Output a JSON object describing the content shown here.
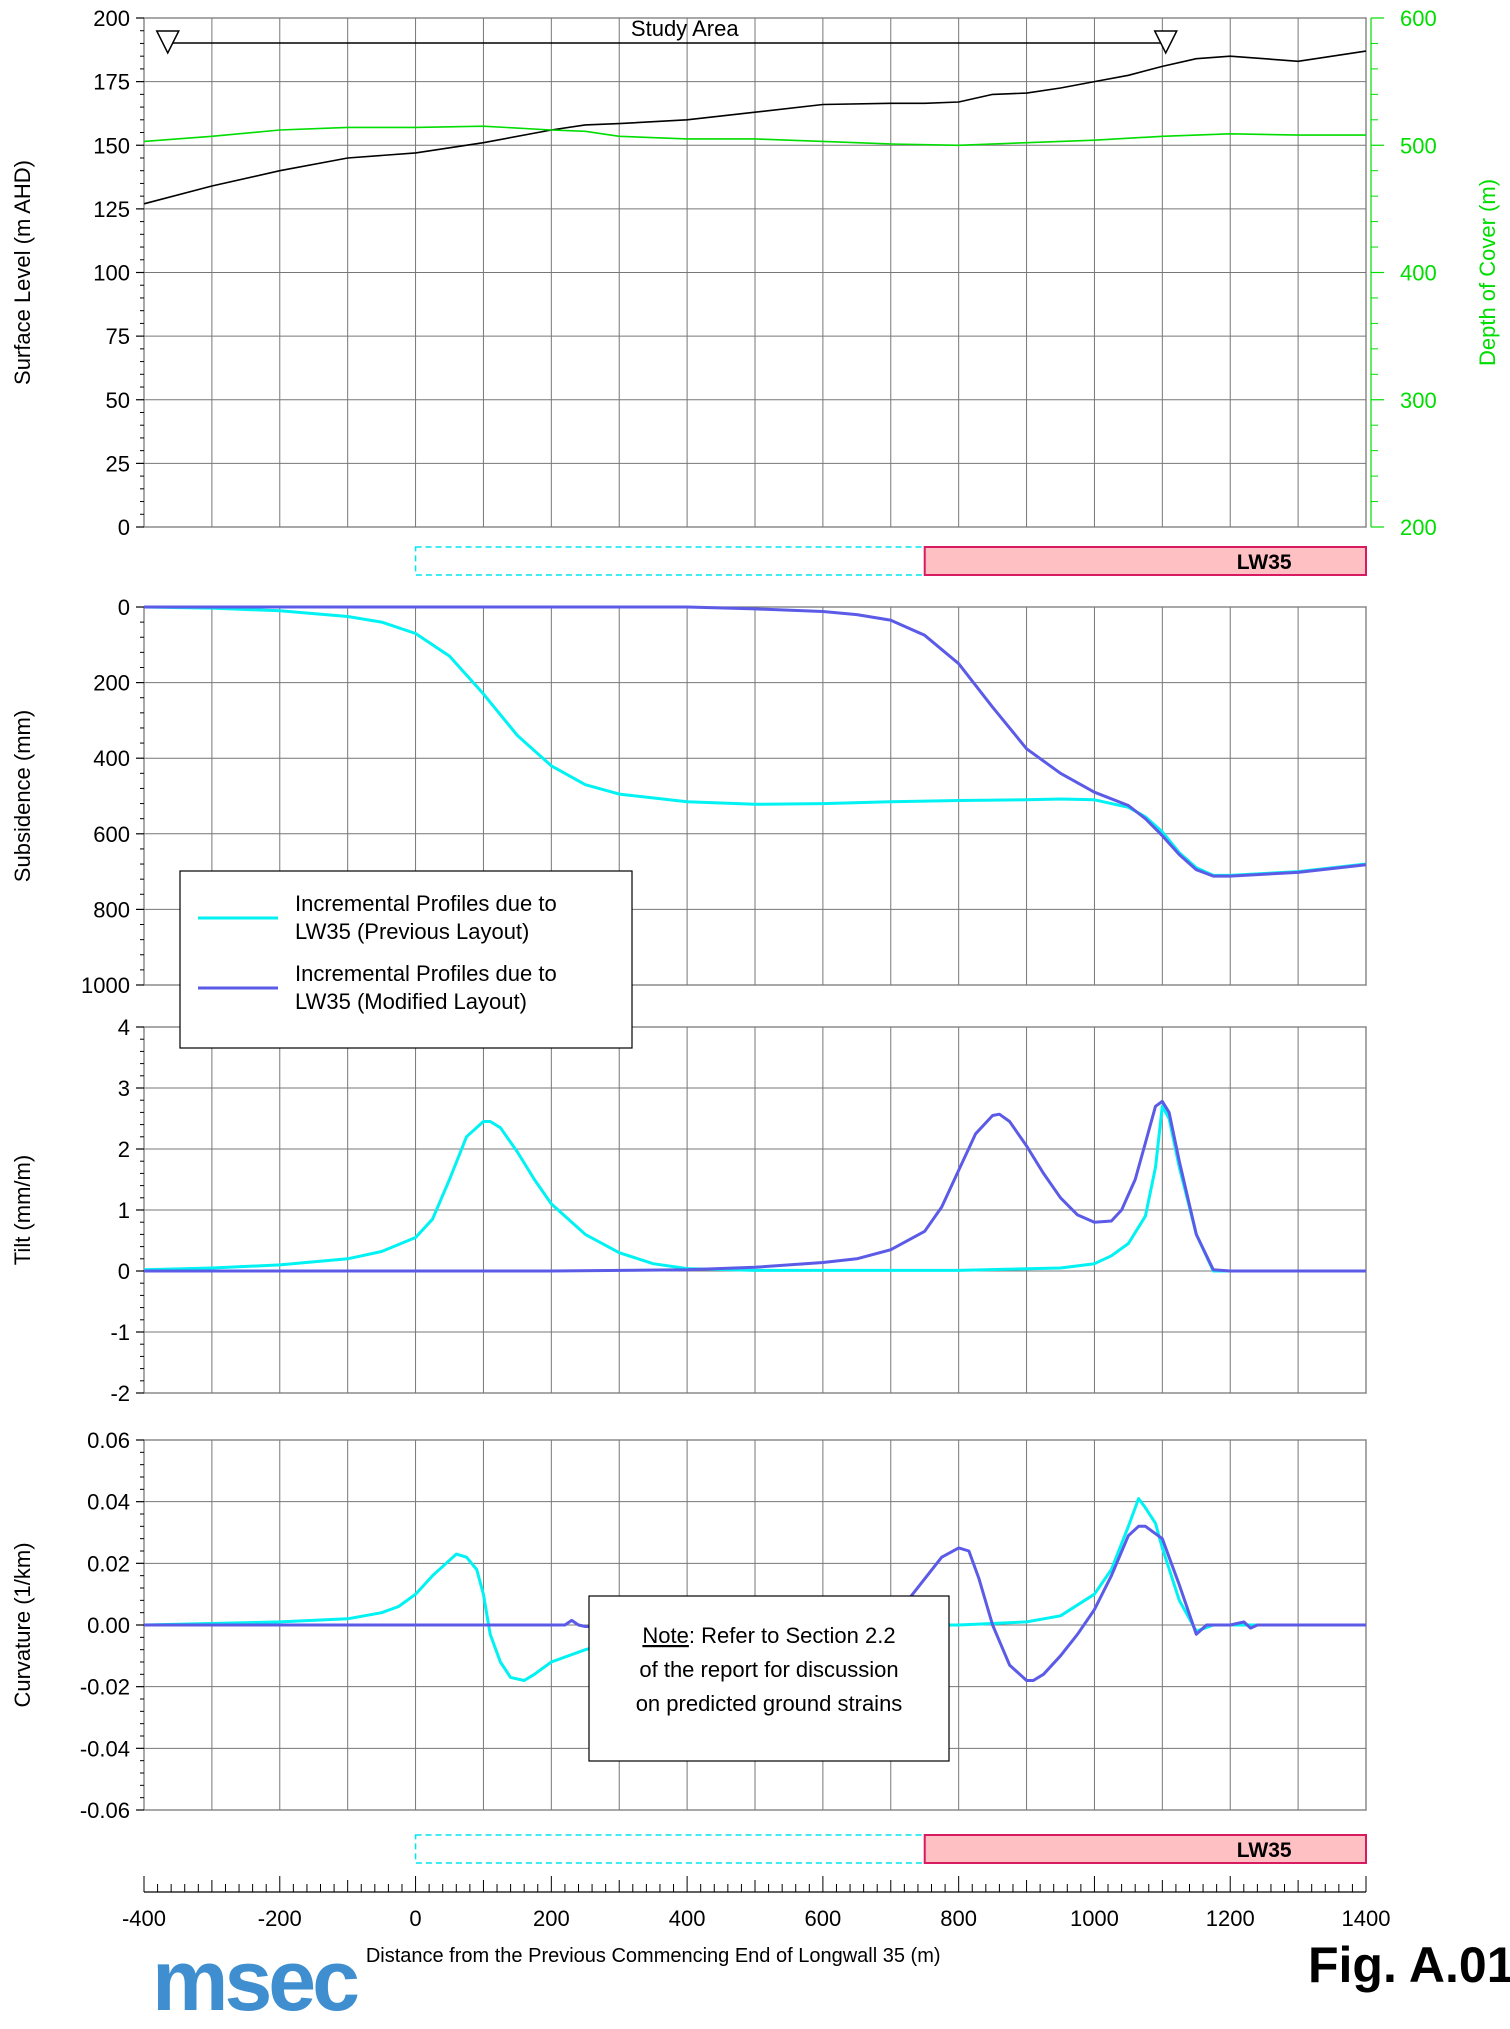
{
  "x_axis": {
    "label": "Distance from the Previous Commencing End of Longwall 35 (m)",
    "range": [
      -400,
      1400
    ],
    "ticks": [
      -400,
      -200,
      0,
      200,
      400,
      600,
      800,
      1000,
      1200,
      1400
    ],
    "tick_labels": [
      "-400",
      "-200",
      "0",
      "200",
      "400",
      "600",
      "800",
      "1000",
      "1200",
      "1400"
    ]
  },
  "longwall_bars": {
    "previous_layout_range": [
      0,
      750
    ],
    "lw35_range": [
      750,
      1400
    ],
    "lw35_label": "LW35",
    "previous_color": "#00e5ee",
    "lw35_color": "#ffc0c4",
    "lw35_border": "#d81b60"
  },
  "study_area": {
    "label": "Study Area",
    "range": [
      -365,
      1105
    ]
  },
  "legend": {
    "entries": [
      {
        "label_line1": "Incremental Profiles due to",
        "label_line2": "LW35 (Previous Layout)",
        "color": "#00f2f2"
      },
      {
        "label_line1": "Incremental Profiles due to",
        "label_line2": "LW35 (Modified Layout)",
        "color": "#5b5be8"
      }
    ]
  },
  "note": {
    "underlined": "Note",
    "line1_rest": ": Refer to Section 2.2",
    "line2": "of the report for discussion",
    "line3": "on predicted ground strains"
  },
  "logo_text": "msec",
  "figure_label": "Fig. A.01",
  "chart_data": [
    {
      "type": "line",
      "panel": "surface",
      "ylabel": "Surface Level (m AHD)",
      "ylim": [
        0,
        200
      ],
      "yticks": [
        0,
        25,
        50,
        75,
        100,
        125,
        150,
        175,
        200
      ],
      "y2label": "Depth of Cover (m)",
      "y2lim": [
        200,
        600
      ],
      "y2ticks": [
        200,
        300,
        400,
        500,
        600
      ],
      "series": [
        {
          "axis": "left",
          "color": "#000000",
          "x": [
            -400,
            -300,
            -200,
            -100,
            0,
            100,
            200,
            250,
            300,
            400,
            500,
            600,
            700,
            750,
            800,
            850,
            900,
            950,
            1000,
            1050,
            1100,
            1150,
            1200,
            1250,
            1300,
            1350,
            1400
          ],
          "y": [
            127,
            134,
            140,
            145,
            147,
            151,
            156,
            158,
            158.5,
            160,
            163,
            166,
            166.5,
            166.5,
            167,
            170,
            170.5,
            172.5,
            175,
            177.5,
            181,
            184,
            185,
            184,
            183,
            185,
            187
          ]
        },
        {
          "axis": "right",
          "color": "#00dd00",
          "x": [
            -400,
            -300,
            -200,
            -100,
            0,
            100,
            200,
            250,
            300,
            400,
            500,
            600,
            700,
            800,
            900,
            1000,
            1100,
            1200,
            1300,
            1400
          ],
          "y": [
            503,
            507,
            512,
            514,
            514,
            515,
            512,
            511,
            507,
            505,
            505,
            503,
            501,
            500,
            502,
            504,
            507,
            509,
            508,
            508
          ]
        }
      ]
    },
    {
      "type": "line",
      "panel": "subsidence",
      "ylabel": "Subsidence (mm)",
      "ylim": [
        1000,
        0
      ],
      "yticks": [
        0,
        200,
        400,
        600,
        800,
        1000
      ],
      "series": [
        {
          "color": "#00f2f2",
          "x": [
            -400,
            -300,
            -200,
            -100,
            -50,
            0,
            50,
            100,
            150,
            200,
            250,
            300,
            400,
            500,
            600,
            700,
            800,
            900,
            950,
            1000,
            1050,
            1075,
            1100,
            1125,
            1150,
            1175,
            1200,
            1300,
            1400
          ],
          "y": [
            0,
            3,
            10,
            25,
            40,
            70,
            130,
            230,
            340,
            420,
            470,
            495,
            515,
            522,
            520,
            515,
            512,
            510,
            508,
            510,
            530,
            555,
            595,
            650,
            690,
            710,
            710,
            700,
            680
          ]
        },
        {
          "color": "#5b5be8",
          "x": [
            -400,
            -200,
            0,
            200,
            400,
            500,
            600,
            650,
            700,
            750,
            800,
            850,
            900,
            950,
            1000,
            1050,
            1075,
            1100,
            1125,
            1150,
            1175,
            1200,
            1300,
            1400
          ],
          "y": [
            0,
            0,
            0,
            0,
            0,
            5,
            12,
            20,
            35,
            75,
            150,
            265,
            375,
            440,
            490,
            525,
            560,
            605,
            655,
            695,
            712,
            712,
            702,
            682
          ]
        }
      ]
    },
    {
      "type": "line",
      "panel": "tilt",
      "ylabel": "Tilt (mm/m)",
      "ylim": [
        -2,
        4
      ],
      "yticks": [
        -2,
        -1,
        0,
        1,
        2,
        3,
        4
      ],
      "series": [
        {
          "color": "#00f2f2",
          "x": [
            -400,
            -300,
            -200,
            -100,
            -50,
            0,
            25,
            50,
            75,
            100,
            110,
            125,
            150,
            175,
            200,
            250,
            300,
            350,
            400,
            500,
            800,
            950,
            1000,
            1025,
            1050,
            1075,
            1090,
            1100,
            1110,
            1125,
            1150,
            1175,
            1200,
            1400
          ],
          "y": [
            0.02,
            0.05,
            0.1,
            0.2,
            0.32,
            0.55,
            0.85,
            1.5,
            2.2,
            2.45,
            2.45,
            2.35,
            1.95,
            1.5,
            1.1,
            0.6,
            0.3,
            0.12,
            0.04,
            0.01,
            0.01,
            0.05,
            0.12,
            0.25,
            0.45,
            0.9,
            1.7,
            2.7,
            2.5,
            1.7,
            0.6,
            0.0,
            0.0,
            0.0
          ]
        },
        {
          "color": "#5b5be8",
          "x": [
            -400,
            -200,
            0,
            200,
            400,
            500,
            600,
            650,
            700,
            750,
            775,
            800,
            825,
            850,
            860,
            875,
            900,
            925,
            950,
            975,
            1000,
            1025,
            1040,
            1060,
            1075,
            1090,
            1100,
            1110,
            1125,
            1150,
            1175,
            1200,
            1400
          ],
          "y": [
            0,
            0,
            0,
            0,
            0.02,
            0.06,
            0.14,
            0.2,
            0.35,
            0.65,
            1.05,
            1.65,
            2.25,
            2.55,
            2.57,
            2.45,
            2.05,
            1.6,
            1.2,
            0.92,
            0.8,
            0.82,
            1.0,
            1.5,
            2.1,
            2.7,
            2.78,
            2.6,
            1.8,
            0.6,
            0.02,
            0.0,
            0.0
          ]
        }
      ]
    },
    {
      "type": "line",
      "panel": "curvature",
      "ylabel": "Curvature (1/km)",
      "ylim": [
        -0.06,
        0.06
      ],
      "yticks": [
        -0.06,
        -0.04,
        -0.02,
        0.0,
        0.02,
        0.04,
        0.06
      ],
      "ytick_labels": [
        "-0.06",
        "-0.04",
        "-0.02",
        "0.00",
        "0.02",
        "0.04",
        "0.06"
      ],
      "series": [
        {
          "color": "#00f2f2",
          "x": [
            -400,
            -200,
            -100,
            -50,
            -25,
            0,
            25,
            50,
            60,
            75,
            90,
            100,
            110,
            125,
            140,
            160,
            175,
            200,
            250,
            300,
            400,
            500,
            600,
            800,
            900,
            950,
            1000,
            1025,
            1050,
            1065,
            1075,
            1090,
            1100,
            1125,
            1150,
            1175,
            1400
          ],
          "y": [
            0,
            0.001,
            0.002,
            0.004,
            0.006,
            0.01,
            0.016,
            0.021,
            0.023,
            0.022,
            0.018,
            0.01,
            -0.003,
            -0.012,
            -0.017,
            -0.018,
            -0.016,
            -0.012,
            -0.008,
            -0.005,
            -0.002,
            0.0,
            0.0,
            0.0,
            0.001,
            0.003,
            0.01,
            0.018,
            0.032,
            0.041,
            0.038,
            0.033,
            0.025,
            0.008,
            -0.002,
            0.0,
            0.0
          ]
        },
        {
          "color": "#5b5be8",
          "x": [
            -400,
            200,
            220,
            230,
            240,
            250,
            265,
            270,
            400,
            500,
            600,
            700,
            725,
            750,
            775,
            800,
            815,
            830,
            850,
            875,
            900,
            910,
            925,
            950,
            975,
            1000,
            1025,
            1050,
            1065,
            1075,
            1100,
            1125,
            1150,
            1165,
            1175,
            1200,
            1220,
            1230,
            1240,
            1400
          ],
          "y": [
            0,
            0,
            0,
            0.0015,
            0,
            -0.0005,
            -0.0005,
            0,
            0.0003,
            0.0008,
            0.0015,
            0.004,
            0.008,
            0.015,
            0.022,
            0.025,
            0.024,
            0.015,
            0.0,
            -0.013,
            -0.018,
            -0.018,
            -0.016,
            -0.01,
            -0.003,
            0.005,
            0.016,
            0.029,
            0.032,
            0.032,
            0.028,
            0.013,
            -0.003,
            0.0,
            0.0,
            0.0,
            0.001,
            -0.001,
            0.0,
            0.0
          ]
        }
      ]
    }
  ]
}
